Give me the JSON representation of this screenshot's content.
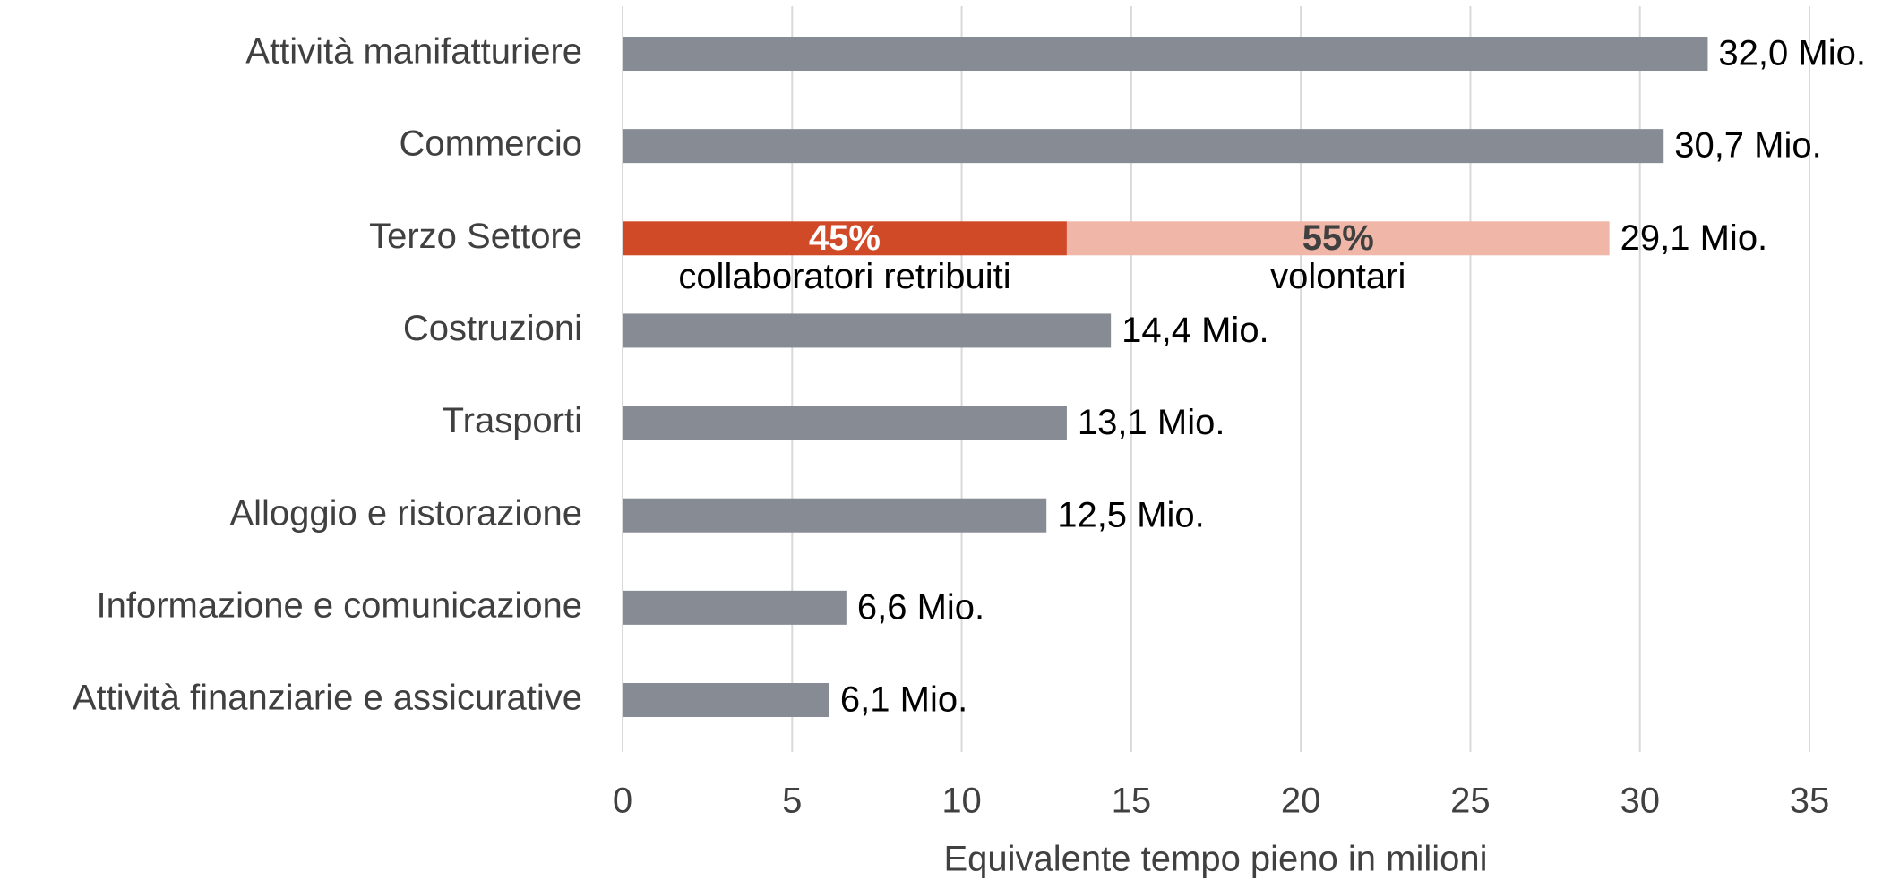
{
  "chart_data": {
    "type": "bar",
    "orientation": "horizontal",
    "x_label": "Equivalente tempo pieno in milioni",
    "categories": [
      "Attività manifatturiere",
      "Commercio",
      "Terzo Settore",
      "Costruzioni",
      "Trasporti",
      "Alloggio e ristorazione",
      "Informazione e comunicazione",
      "Attività finanziarie e assicurative"
    ],
    "values": [
      32.0,
      30.7,
      29.1,
      14.4,
      13.1,
      12.5,
      6.6,
      6.1
    ],
    "value_labels": [
      "32,0 Mio.",
      "30,7 Mio.",
      "29,1 Mio.",
      "14,4 Mio.",
      "13,1 Mio.",
      "12,5 Mio.",
      "6,6 Mio.",
      "6,1 Mio."
    ],
    "color": "#868b94",
    "split": {
      "category_index": 2,
      "segments": [
        {
          "name": "collaboratori retribuiti",
          "value": 13.1,
          "percent": 45,
          "percent_label": "45%",
          "color": "#d04a28",
          "label_color": "#ffffff"
        },
        {
          "name": "volontari",
          "value": 16.0,
          "percent": 55,
          "percent_label": "55%",
          "color": "#f0b7a8",
          "label_color": "#404040"
        }
      ]
    },
    "xlim": [
      0,
      35
    ],
    "xticks": [
      0,
      5,
      10,
      15,
      20,
      25,
      30,
      35
    ],
    "grid": true
  }
}
